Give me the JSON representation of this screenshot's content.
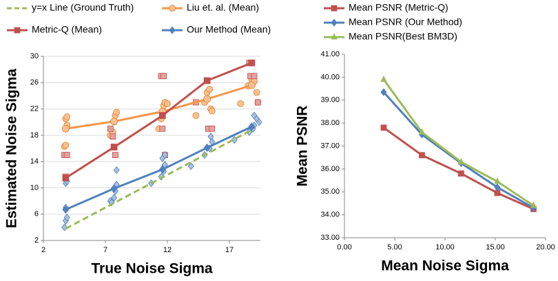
{
  "chart_data": [
    {
      "type": "line",
      "xlabel": "True Noise Sigma",
      "ylabel": "Estimated Noise Sigma",
      "x": [
        3.8,
        7.7,
        11.6,
        15.2,
        18.8
      ],
      "xlim": [
        2,
        19.5
      ],
      "xticks": [
        2,
        7,
        12,
        17
      ],
      "ylim": [
        2,
        30
      ],
      "yticks": [
        2,
        6,
        10,
        14,
        18,
        22,
        26,
        30
      ],
      "grid": true,
      "series": [
        {
          "name": "y=x Line (Ground Truth)",
          "color": "#9bbb59",
          "dashed": true,
          "marker": "none",
          "values": [
            3.8,
            7.7,
            11.6,
            15.2,
            18.8
          ]
        },
        {
          "name": "Liu et. al. (Mean)",
          "color": "#f79646",
          "marker": "circle",
          "values": [
            19,
            20.1,
            21.6,
            23.5,
            25.6
          ],
          "scatter_x": [
            3.7,
            3.8,
            3.8,
            3.9,
            3.8,
            3.9,
            7.4,
            7.6,
            7.7,
            7.8,
            7.9,
            11.3,
            11.5,
            11.7,
            11.8,
            12.0,
            14.3,
            15.0,
            15.2,
            15.4,
            15.5,
            15.6,
            17.9,
            18.5,
            18.8,
            19.0,
            19.2,
            19.3
          ],
          "scatter_y": [
            16.3,
            16.5,
            19,
            19.5,
            20.5,
            20.8,
            18,
            18.5,
            20,
            21,
            21.5,
            19,
            20.5,
            22.5,
            23,
            22.8,
            21,
            23,
            24.5,
            25,
            22,
            21.7,
            22.8,
            25.5,
            26.5,
            26.2,
            24.5,
            23
          ]
        },
        {
          "name": "Metric-Q (Mean)",
          "color": "#c0504d",
          "marker": "square",
          "values": [
            11.5,
            16.2,
            21,
            26.3,
            29
          ],
          "scatter_x": [
            3.8,
            3.7,
            3.9,
            7.4,
            7.8,
            7.6,
            11.5,
            11.7,
            11.6,
            11.8,
            14.3,
            15.3,
            15.6,
            18.7,
            19.0,
            19.3,
            18.6
          ],
          "scatter_y": [
            11.7,
            15,
            15,
            19,
            15,
            17.8,
            27,
            27,
            19,
            15,
            23,
            19,
            19,
            27,
            27,
            23,
            29
          ]
        },
        {
          "name": "Our Method (Mean)",
          "color": "#4f81bd",
          "marker": "diamond",
          "values": [
            6.7,
            9.9,
            12.8,
            16.1,
            19.3
          ],
          "scatter_x": [
            3.7,
            3.8,
            3.9,
            3.8,
            3.8,
            3.9,
            7.4,
            7.7,
            7.8,
            7.9,
            7.9,
            7.5,
            11.5,
            11.7,
            11.8,
            11.6,
            11.8,
            10.7,
            13.9,
            15.0,
            15.4,
            15.6,
            15.5,
            17.4,
            18.6,
            19.0,
            19.2,
            19.0,
            19.4,
            18.9
          ],
          "scatter_y": [
            4,
            5,
            5.5,
            7,
            10.7,
            11,
            8,
            8.5,
            9.5,
            10.5,
            12.7,
            7.8,
            11.7,
            12.5,
            13.5,
            14.5,
            15,
            10.7,
            13.3,
            15,
            16,
            17,
            17.8,
            17.3,
            18.5,
            19.5,
            20.5,
            21,
            20,
            19
          ]
        }
      ]
    },
    {
      "type": "line",
      "xlabel": "Mean Noise Sigma",
      "ylabel": "Mean PSNR",
      "x": [
        3.9,
        7.7,
        11.6,
        15.2,
        18.8
      ],
      "xlim": [
        0,
        20
      ],
      "xticks": [
        {
          "value": 0,
          "label": "0.00"
        },
        {
          "value": 5,
          "label": "5.00"
        },
        {
          "value": 10,
          "label": "10.00"
        },
        {
          "value": 15,
          "label": "15.00"
        },
        {
          "value": 20,
          "label": "20.00"
        }
      ],
      "ylim": [
        33,
        41
      ],
      "yticks": [
        {
          "value": 33,
          "label": "33.00"
        },
        {
          "value": 34,
          "label": "34.00"
        },
        {
          "value": 35,
          "label": "35.00"
        },
        {
          "value": 36,
          "label": "36.00"
        },
        {
          "value": 37,
          "label": "37.00"
        },
        {
          "value": 38,
          "label": "38.00"
        },
        {
          "value": 39,
          "label": "39.00"
        },
        {
          "value": 40,
          "label": "40.00"
        },
        {
          "value": 41,
          "label": "41.00"
        }
      ],
      "grid": false,
      "series": [
        {
          "name": "Mean PSNR (Metric-Q)",
          "color": "#c0504d",
          "marker": "square",
          "values": [
            37.8,
            36.6,
            35.8,
            34.95,
            34.25
          ]
        },
        {
          "name": "Mean PSNR (Our Method)",
          "color": "#4f81bd",
          "marker": "diamond",
          "values": [
            39.35,
            37.5,
            36.25,
            35.2,
            34.3
          ]
        },
        {
          "name": "Mean PSNR(Best BM3D)",
          "color": "#9bbb59",
          "marker": "triangle",
          "values": [
            39.9,
            37.6,
            36.3,
            35.45,
            34.4
          ]
        }
      ]
    }
  ]
}
